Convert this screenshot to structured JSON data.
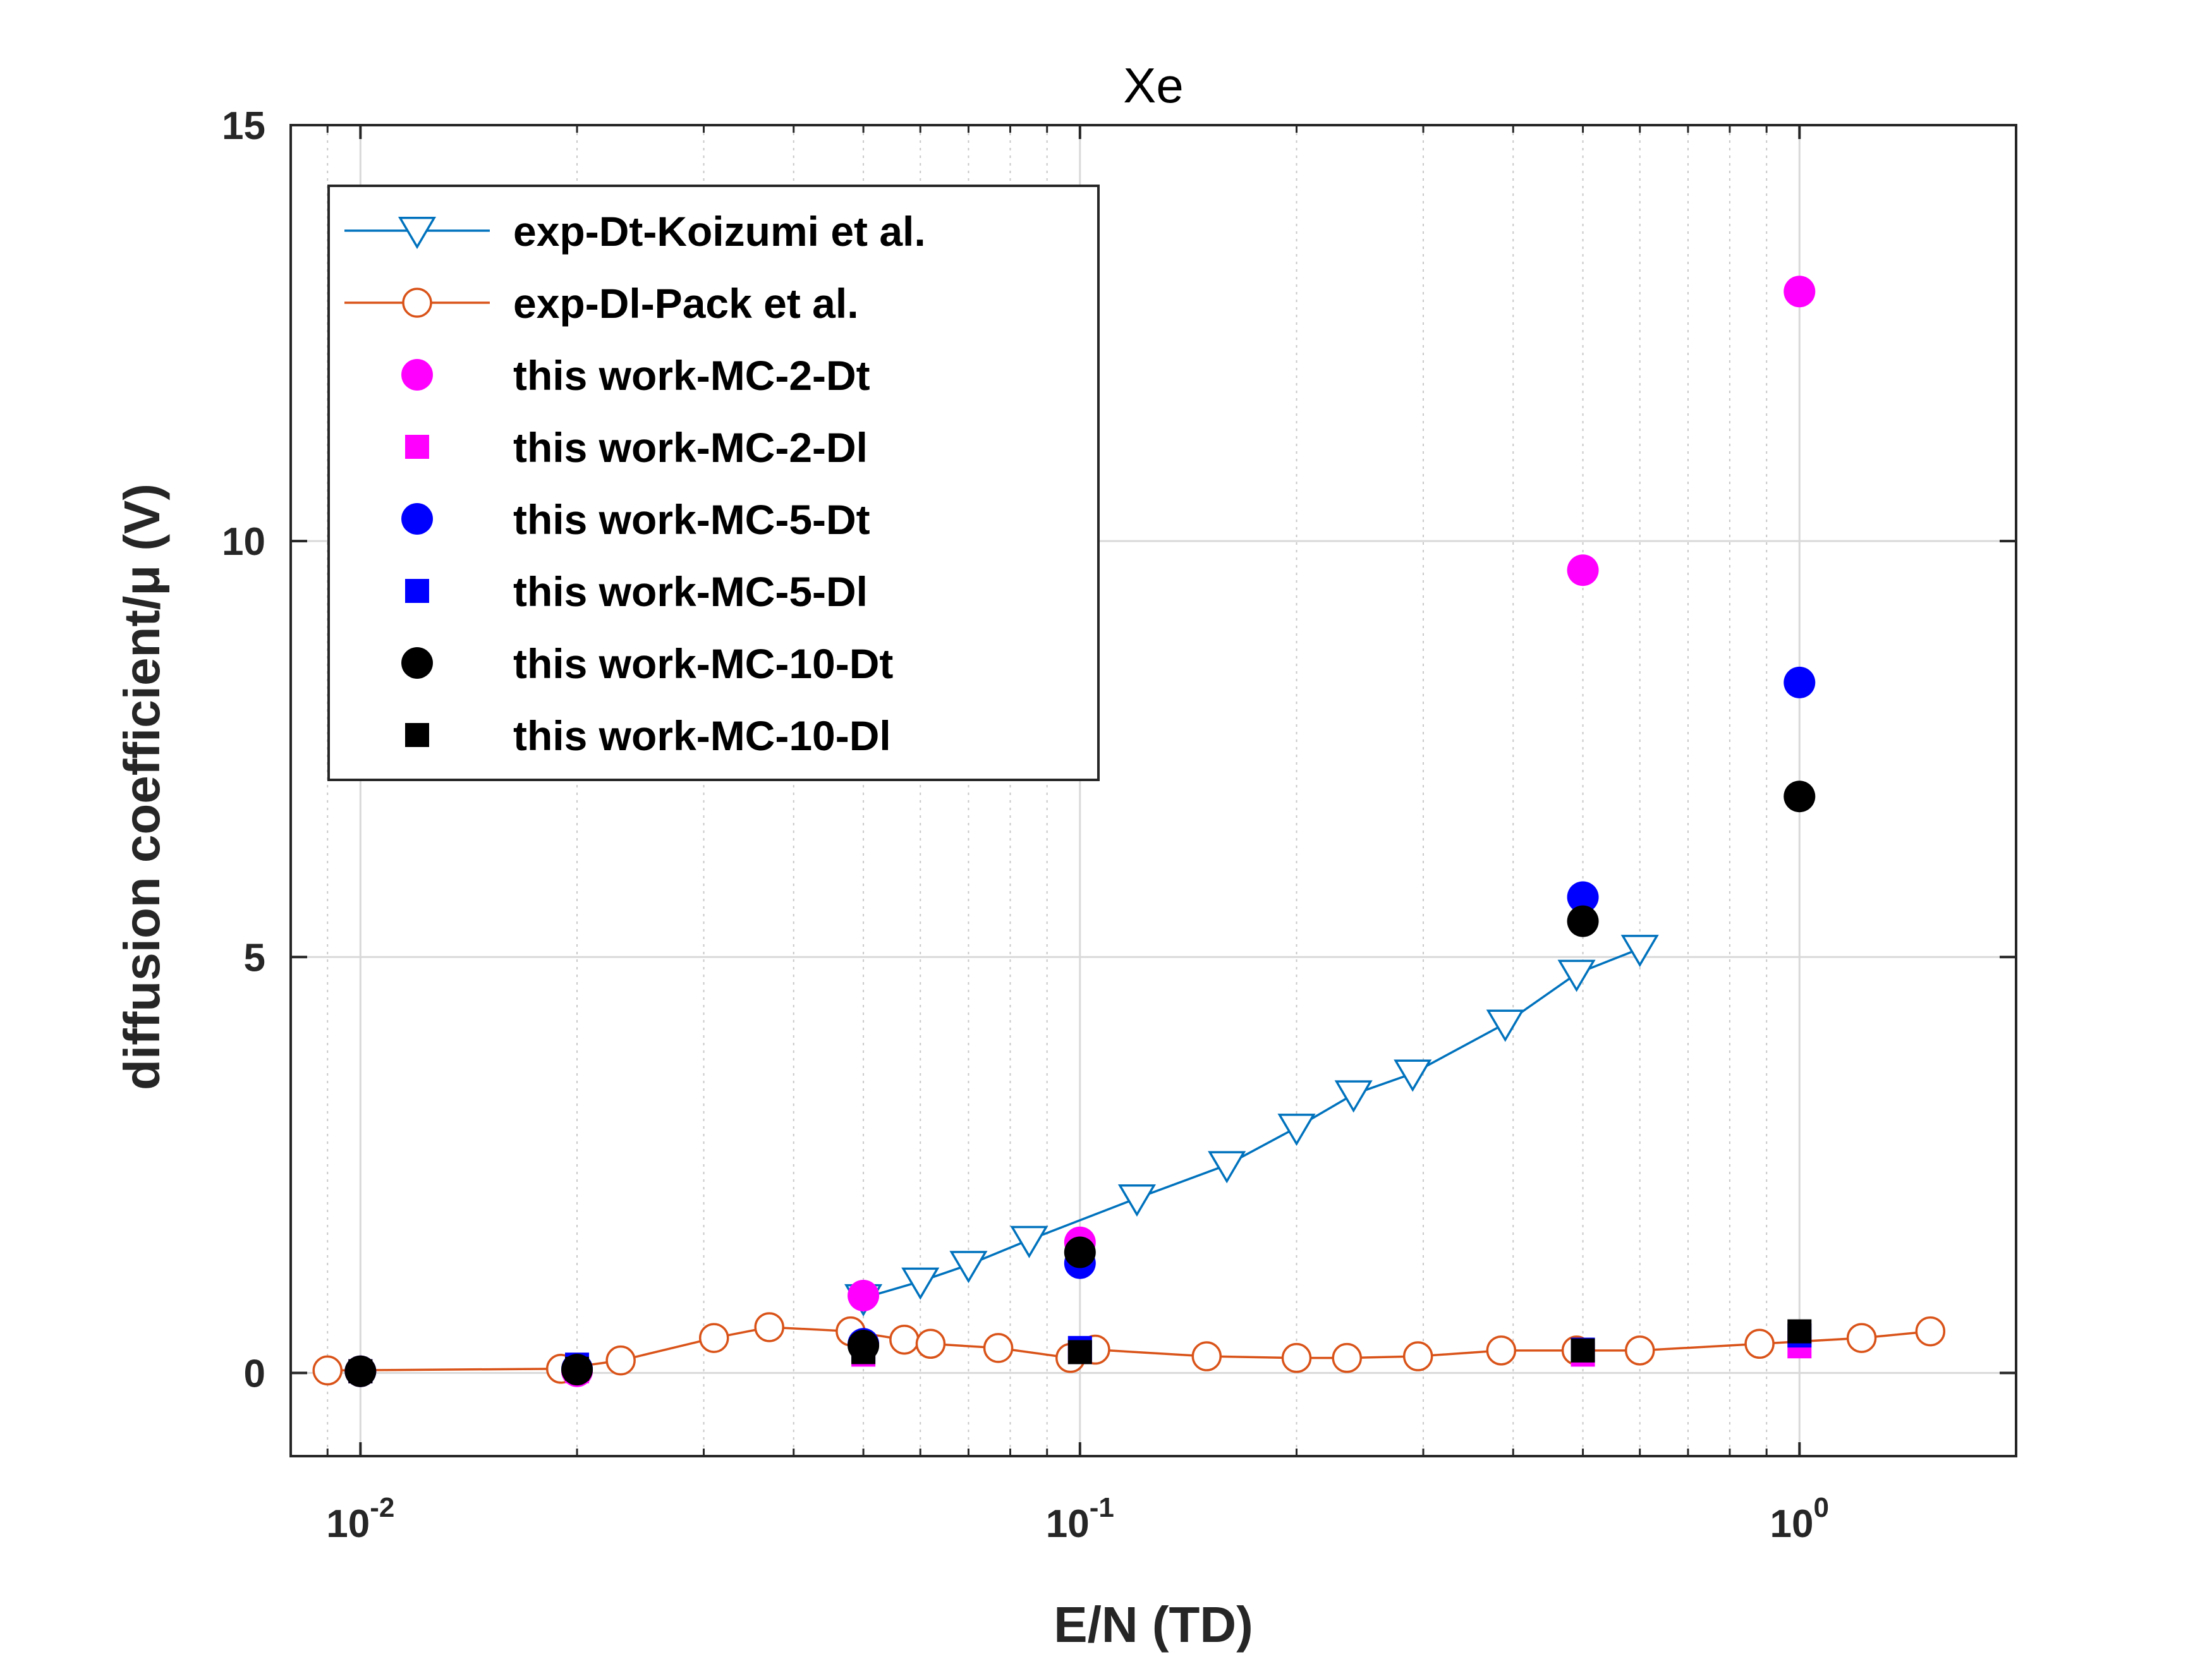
{
  "chart_data": {
    "type": "scatter",
    "title": "Xe",
    "xlabel": "E/N (TD)",
    "ylabel": "diffusion coefficient/μ (V)",
    "xscale": "log",
    "xlim": [
      0.008,
      2.0
    ],
    "ylim": [
      -1,
      15
    ],
    "grid": true,
    "x_ticks": [
      {
        "value": 0.01,
        "base": "10",
        "exp": "-2"
      },
      {
        "value": 0.1,
        "base": "10",
        "exp": "-1"
      },
      {
        "value": 1,
        "base": "10",
        "exp": "0"
      }
    ],
    "y_ticks": [
      {
        "value": 0,
        "label": "0"
      },
      {
        "value": 5,
        "label": "5"
      },
      {
        "value": 10,
        "label": "10"
      },
      {
        "value": 15,
        "label": "15"
      }
    ],
    "legend_position": "top-left",
    "series": [
      {
        "name": "exp-Dt-Koizumi et al.",
        "kind": "line",
        "marker": "triangle-down",
        "color": "#0072BD",
        "x": [
          0.05,
          0.06,
          0.07,
          0.085,
          0.12,
          0.16,
          0.2,
          0.24,
          0.29,
          0.39,
          0.49,
          0.6
        ],
        "y": [
          0.9,
          1.1,
          1.3,
          1.6,
          2.1,
          2.5,
          2.95,
          3.35,
          3.6,
          4.2,
          4.8,
          5.1
        ]
      },
      {
        "name": "exp-Dl-Pack et al.",
        "kind": "line",
        "marker": "circle-open",
        "color": "#D95319",
        "x": [
          0.009,
          0.019,
          0.023,
          0.031,
          0.037,
          0.048,
          0.057,
          0.062,
          0.077,
          0.097,
          0.105,
          0.15,
          0.2,
          0.235,
          0.295,
          0.385,
          0.49,
          0.6,
          0.88,
          1.22,
          1.52
        ],
        "y": [
          0.03,
          0.05,
          0.15,
          0.42,
          0.55,
          0.5,
          0.4,
          0.35,
          0.3,
          0.18,
          0.28,
          0.2,
          0.18,
          0.18,
          0.2,
          0.27,
          0.27,
          0.27,
          0.35,
          0.42,
          0.5
        ]
      },
      {
        "name": "this work-MC-2-Dt",
        "kind": "scatter",
        "marker": "circle",
        "color": "#FF00FF",
        "x": [
          0.01,
          0.02,
          0.05,
          0.1,
          0.5,
          1
        ],
        "y": [
          0.02,
          0.02,
          0.93,
          1.57,
          9.65,
          13.0
        ]
      },
      {
        "name": "this work-MC-2-Dl",
        "kind": "scatter",
        "marker": "square",
        "color": "#FF00FF",
        "x": [
          0.01,
          0.02,
          0.05,
          0.1,
          0.5,
          1
        ],
        "y": [
          0.02,
          0.02,
          0.22,
          0.25,
          0.22,
          0.32
        ]
      },
      {
        "name": "this work-MC-5-Dt",
        "kind": "scatter",
        "marker": "circle",
        "color": "#0000FF",
        "x": [
          0.01,
          0.02,
          0.05,
          0.1,
          0.5,
          1
        ],
        "y": [
          0.02,
          0.05,
          0.35,
          1.32,
          5.72,
          8.3
        ]
      },
      {
        "name": "this work-MC-5-Dl",
        "kind": "scatter",
        "marker": "square",
        "color": "#0000FF",
        "x": [
          0.01,
          0.02,
          0.05,
          0.1,
          0.5,
          1
        ],
        "y": [
          0.02,
          0.1,
          0.28,
          0.3,
          0.28,
          0.45
        ]
      },
      {
        "name": "this work-MC-10-Dt",
        "kind": "scatter",
        "marker": "circle",
        "color": "#000000",
        "x": [
          0.01,
          0.02,
          0.05,
          0.1,
          0.5,
          1
        ],
        "y": [
          0.02,
          0.04,
          0.33,
          1.45,
          5.43,
          6.93
        ]
      },
      {
        "name": "this work-MC-10-Dl",
        "kind": "scatter",
        "marker": "square",
        "color": "#000000",
        "x": [
          0.01,
          0.02,
          0.05,
          0.1,
          0.5,
          1
        ],
        "y": [
          0.02,
          0.05,
          0.25,
          0.25,
          0.27,
          0.5
        ]
      }
    ]
  }
}
